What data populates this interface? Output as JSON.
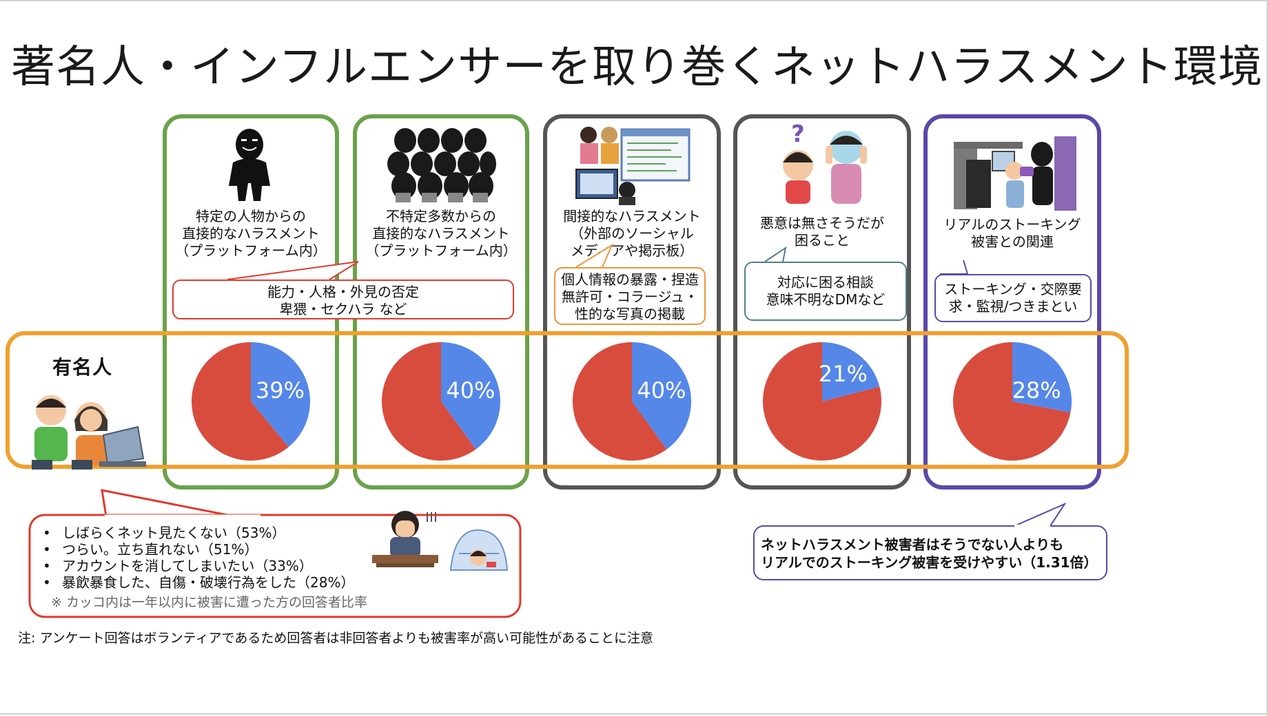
{
  "title": "著名人・インフルエンサーを取り巻くネットハラスメント環境",
  "row_label": "有名人",
  "columns": [
    {
      "label_lines": [
        "特定の人物からの",
        "直接的なハラスメント",
        "（プラットフォーム内）"
      ],
      "border_color": "#6aa24a"
    },
    {
      "label_lines": [
        "不特定多数からの",
        "直接的なハラスメント",
        "（プラットフォーム内）"
      ],
      "border_color": "#6aa24a"
    },
    {
      "label_lines": [
        "間接的なハラスメント",
        "（外部のソーシャル",
        "メディアや掲示板）"
      ],
      "border_color": "#555555"
    },
    {
      "label_lines": [
        "悪意は無さそうだが",
        "困ること"
      ],
      "border_color": "#555555"
    },
    {
      "label_lines": [
        "リアルのストーキング",
        "被害との関連"
      ],
      "border_color": "#5a48a8"
    }
  ],
  "callouts": {
    "green": [
      "能力・人格・外見の否定",
      "卑猥・セクハラ など"
    ],
    "orange": [
      "個人情報の暴露・捏造",
      "無許可・コラージュ・",
      "性的な写真の掲載"
    ],
    "teal": [
      "対応に困る相談",
      "意味不明なDMなど"
    ],
    "purple": [
      "ストーキング・交際要",
      "求・監視/つきまとい"
    ]
  },
  "effects": {
    "items": [
      "しばらくネット見たくない（53%）",
      "つらい。立ち直れない（51%）",
      "アカウントを消してしまいたい（33%）",
      "暴飲暴食した、自傷・破壊行為をした（28%）"
    ],
    "bullet": "•",
    "note": "※ カッコ内は一年以内に被害に遭った方の回答者比率"
  },
  "stalking_note": [
    "ネットハラスメント被害者はそうでない人よりも",
    "リアルでのストーキング被害を受けやすい（1.31倍）"
  ],
  "footnote": "注: アンケート回答はボランティアであるため回答者は非回答者よりも被害率が高い可能性があることに注意",
  "colors": {
    "pie_highlight": "#5587e8",
    "pie_rest": "#d84c3e",
    "celeb_band": "#f0a030",
    "effects_callout": "#e03a2e",
    "stalking_callout": "#5a48a8",
    "orange_callout": "#e8973a",
    "teal_callout": "#4f7f89"
  },
  "chart_data": {
    "type": "pie",
    "charts": [
      {
        "category": "特定の人物からの直接的なハラスメント（プラットフォーム内）",
        "value": 39,
        "label": "39%"
      },
      {
        "category": "不特定多数からの直接的なハラスメント（プラットフォーム内）",
        "value": 40,
        "label": "40%"
      },
      {
        "category": "間接的なハラスメント（外部のソーシャルメディアや掲示板）",
        "value": 40,
        "label": "40%"
      },
      {
        "category": "悪意は無さそうだが困ること",
        "value": 21,
        "label": "21%"
      },
      {
        "category": "リアルのストーキング被害との関連",
        "value": 28,
        "label": "28%"
      }
    ],
    "unit": "%"
  }
}
